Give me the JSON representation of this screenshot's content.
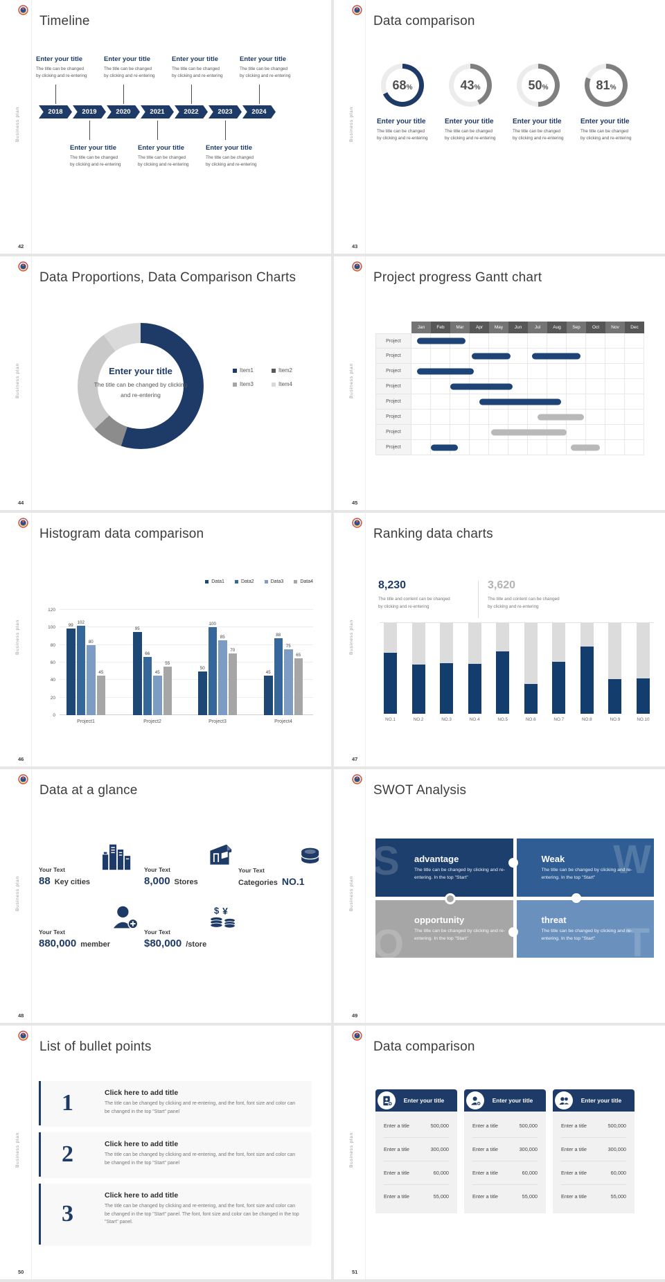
{
  "global": {
    "vertical_label": "Business plan",
    "percent_sign": "%",
    "colors": {
      "navy": "#1e3a66",
      "gray": "#7f7f7f",
      "slide_bg": "#ffffff",
      "gap_bg": "#e6e6e6"
    }
  },
  "slides": {
    "timeline": {
      "number": "42",
      "title": "Timeline",
      "item_title": "Enter your title",
      "item_line1": "The title can be changed",
      "item_line2": "by clicking and re-entering",
      "years": [
        "2018",
        "2019",
        "2020",
        "2021",
        "2022",
        "2023",
        "2024"
      ]
    },
    "rings": {
      "number": "43",
      "title": "Data comparison",
      "item_title": "Enter your title",
      "item_line1": "The title can be changed",
      "item_line2": "by clicking and re-entering"
    },
    "donut": {
      "number": "44",
      "title": "Data Proportions, Data Comparison Charts",
      "center_title": "Enter your title",
      "center_desc": "The title can be changed by clicking and re-entering"
    },
    "gantt": {
      "number": "45",
      "title": "Project progress Gantt chart"
    },
    "histogram": {
      "number": "46",
      "title": "Histogram data comparison"
    },
    "ranking": {
      "number": "47",
      "title": "Ranking data charts",
      "stat1_value": "8,230",
      "stat2_value": "3,620",
      "stat_line1": "The title and content can be changed",
      "stat_line2": "by clicking and re-entering"
    },
    "glance": {
      "number": "48",
      "title": "Data at a glance",
      "items": [
        {
          "label": "Your Text",
          "value": "88",
          "unit": "Key cities",
          "icon": "city-buildings-icon"
        },
        {
          "label": "Your Text",
          "value": "8,000",
          "unit": "Stores",
          "icon": "store-icon"
        },
        {
          "label": "Your Text",
          "prefix": "Categories",
          "value": "NO.1",
          "icon": "categories-barrel-icon"
        },
        {
          "label": "Your Text",
          "value": "880,000",
          "unit": "member",
          "icon": "member-add-icon"
        },
        {
          "label": "Your Text",
          "value": "$80,000",
          "unit": "/store",
          "icon": "money-coins-icon"
        }
      ]
    },
    "swot": {
      "number": "49",
      "title": "SWOT Analysis",
      "quadrants": [
        {
          "letter": "S",
          "heading": "advantage",
          "desc": "The title can be changed by clicking and re-entering. In the top \"Start\"",
          "color": "#1d3f6d"
        },
        {
          "letter": "W",
          "heading": "Weak",
          "desc": "The title can be changed by clicking and re-entering. In the top \"Start\"",
          "color": "#2f5d94"
        },
        {
          "letter": "O",
          "heading": "opportunity",
          "desc": "The title can be changed by clicking and re-entering. In the top \"Start\"",
          "color": "#a6a6a6"
        },
        {
          "letter": "T",
          "heading": "threat",
          "desc": "The title can be changed by clicking and re-entering. In the top \"Start\"",
          "color": "#6a90bd"
        }
      ]
    },
    "bullets": {
      "number": "50",
      "title": "List of bullet points",
      "items": [
        {
          "num": "1",
          "heading": "Click here to add title",
          "body": "The title can be changed by clicking and re-entering, and the font, font size and color can be changed in the top \"Start\" panel"
        },
        {
          "num": "2",
          "heading": "Click here to add title",
          "body": "The title can be changed by clicking and re-entering, and the font, font size and color can be changed in the top \"Start\" panel"
        },
        {
          "num": "3",
          "heading": "Click here to add title",
          "body": "The title can be changed by clicking and re-entering, and the font, font size and color can be changed in the top \"Start\" panel. The font, font size and color can be changed in the top \"Start\" panel."
        }
      ]
    },
    "tables": {
      "number": "51",
      "title": "Data comparison",
      "card_title": "Enter your title",
      "row_label": "Enter a title",
      "cards": [
        {
          "icon": "id-card-add-icon",
          "rows": [
            {
              "label": "Enter a title",
              "value": "500,000"
            },
            {
              "label": "Enter a title",
              "value": "300,000"
            },
            {
              "label": "Enter a title",
              "value": "60,000"
            },
            {
              "label": "Enter a title",
              "value": "55,000"
            }
          ]
        },
        {
          "icon": "member-add-icon",
          "rows": [
            {
              "label": "Enter a title",
              "value": "500,000"
            },
            {
              "label": "Enter a title",
              "value": "300,000"
            },
            {
              "label": "Enter a title",
              "value": "60,000"
            },
            {
              "label": "Enter a title",
              "value": "55,000"
            }
          ]
        },
        {
          "icon": "team-icon",
          "rows": [
            {
              "label": "Enter a title",
              "value": "500,000"
            },
            {
              "label": "Enter a title",
              "value": "300,000"
            },
            {
              "label": "Enter a title",
              "value": "60,000"
            },
            {
              "label": "Enter a title",
              "value": "55,000"
            }
          ]
        }
      ]
    }
  },
  "chart_data": [
    {
      "id": "rings",
      "type": "pie",
      "title": "Data comparison progress rings",
      "values": [
        68,
        43,
        50,
        81
      ],
      "colors": [
        "#1e3a66",
        "#7f7f7f",
        "#7f7f7f",
        "#7f7f7f"
      ],
      "track": "#ececec"
    },
    {
      "id": "donut",
      "type": "pie",
      "title": "Data Proportions, Data Comparison Charts",
      "legend": [
        "Item1",
        "Item2",
        "Item3",
        "Item4"
      ],
      "values": [
        55,
        8,
        27,
        10
      ],
      "colors": [
        "#1e3a66",
        "#8c8c8c",
        "#c9c9c9",
        "#dadada"
      ],
      "legend_colors": [
        "#1e3a66",
        "#595959",
        "#a6a6a6",
        "#d9d9d9"
      ],
      "legend_position": "right"
    },
    {
      "id": "gantt",
      "type": "table",
      "title": "Project progress Gantt chart",
      "months": [
        "Jan",
        "Feb",
        "Mar",
        "Apr",
        "May",
        "Jun",
        "Jul",
        "Aug",
        "Sep",
        "Oct",
        "Nov",
        "Dec"
      ],
      "row_label": "Project",
      "bar_colors": {
        "navy": "#1e4476",
        "gray": "#b9b9b9"
      },
      "rows": [
        [
          {
            "start": 0.3,
            "end": 2.8,
            "color": "navy"
          }
        ],
        [
          {
            "start": 3.1,
            "end": 5.1,
            "color": "navy"
          },
          {
            "start": 6.2,
            "end": 8.7,
            "color": "navy"
          }
        ],
        [
          {
            "start": 0.3,
            "end": 3.2,
            "color": "navy"
          }
        ],
        [
          {
            "start": 2.0,
            "end": 5.2,
            "color": "navy"
          }
        ],
        [
          {
            "start": 3.5,
            "end": 7.7,
            "color": "navy"
          }
        ],
        [
          {
            "start": 6.5,
            "end": 8.9,
            "color": "gray"
          }
        ],
        [
          {
            "start": 4.1,
            "end": 8.0,
            "color": "gray"
          }
        ],
        [
          {
            "start": 1.0,
            "end": 2.4,
            "color": "navy"
          },
          {
            "start": 8.2,
            "end": 9.7,
            "color": "gray"
          }
        ]
      ]
    },
    {
      "id": "histogram",
      "type": "bar",
      "title": "Histogram data comparison",
      "categories": [
        "Project1",
        "Project2",
        "Project3",
        "Project4"
      ],
      "series": [
        {
          "name": "Data1",
          "color": "#1d4876",
          "values": [
            99,
            95,
            50,
            45
          ]
        },
        {
          "name": "Data2",
          "color": "#35679a",
          "values": [
            102,
            66,
            100,
            88
          ]
        },
        {
          "name": "Data3",
          "color": "#7c9cc4",
          "values": [
            80,
            45,
            85,
            75
          ]
        },
        {
          "name": "Data4",
          "color": "#a6a6a6",
          "values": [
            45,
            55,
            70,
            65
          ]
        }
      ],
      "ylim": [
        0,
        120
      ],
      "yticks": [
        0,
        20,
        40,
        60,
        80,
        100,
        120
      ],
      "legend_position": "top-right",
      "grid": true
    },
    {
      "id": "ranking",
      "type": "bar",
      "title": "Ranking data charts",
      "categories": [
        "NO.1",
        "NO.2",
        "NO.3",
        "NO.4",
        "NO.5",
        "NO.6",
        "NO.7",
        "NO.8",
        "NO.9",
        "NO.10"
      ],
      "values": [
        0.67,
        0.54,
        0.56,
        0.55,
        0.69,
        0.33,
        0.57,
        0.74,
        0.38,
        0.39
      ],
      "ylim": [
        0,
        1
      ],
      "fill": "#123d6d",
      "track": "#dcdcdc"
    }
  ]
}
